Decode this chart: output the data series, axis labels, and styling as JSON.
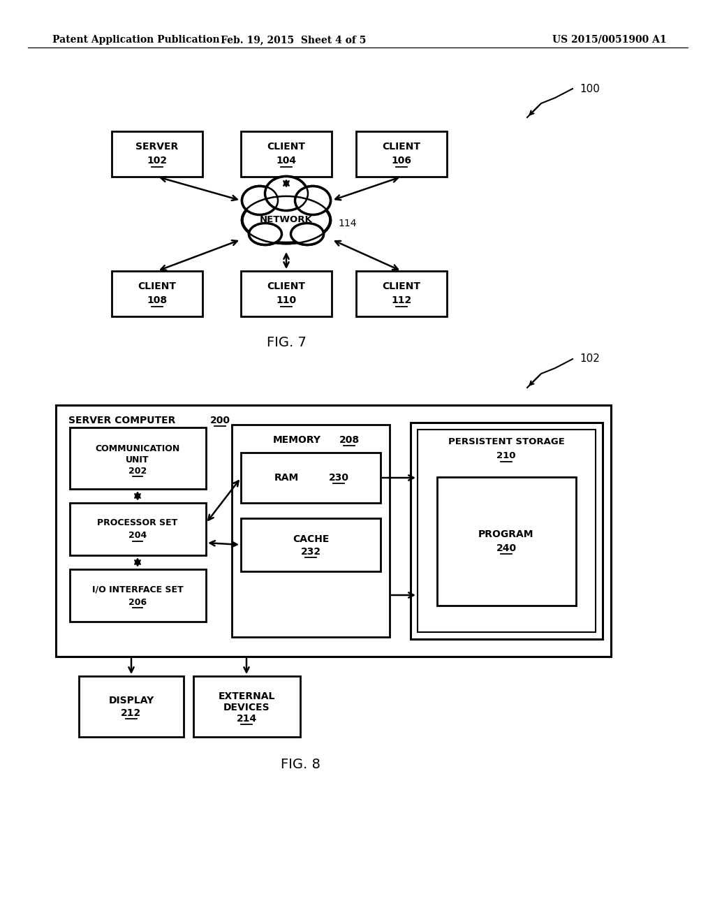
{
  "bg_color": "#ffffff",
  "header_left": "Patent Application Publication",
  "header_mid": "Feb. 19, 2015  Sheet 4 of 5",
  "header_right": "US 2015/0051900 A1",
  "fig7_label": "FIG. 7",
  "fig8_label": "FIG. 8"
}
